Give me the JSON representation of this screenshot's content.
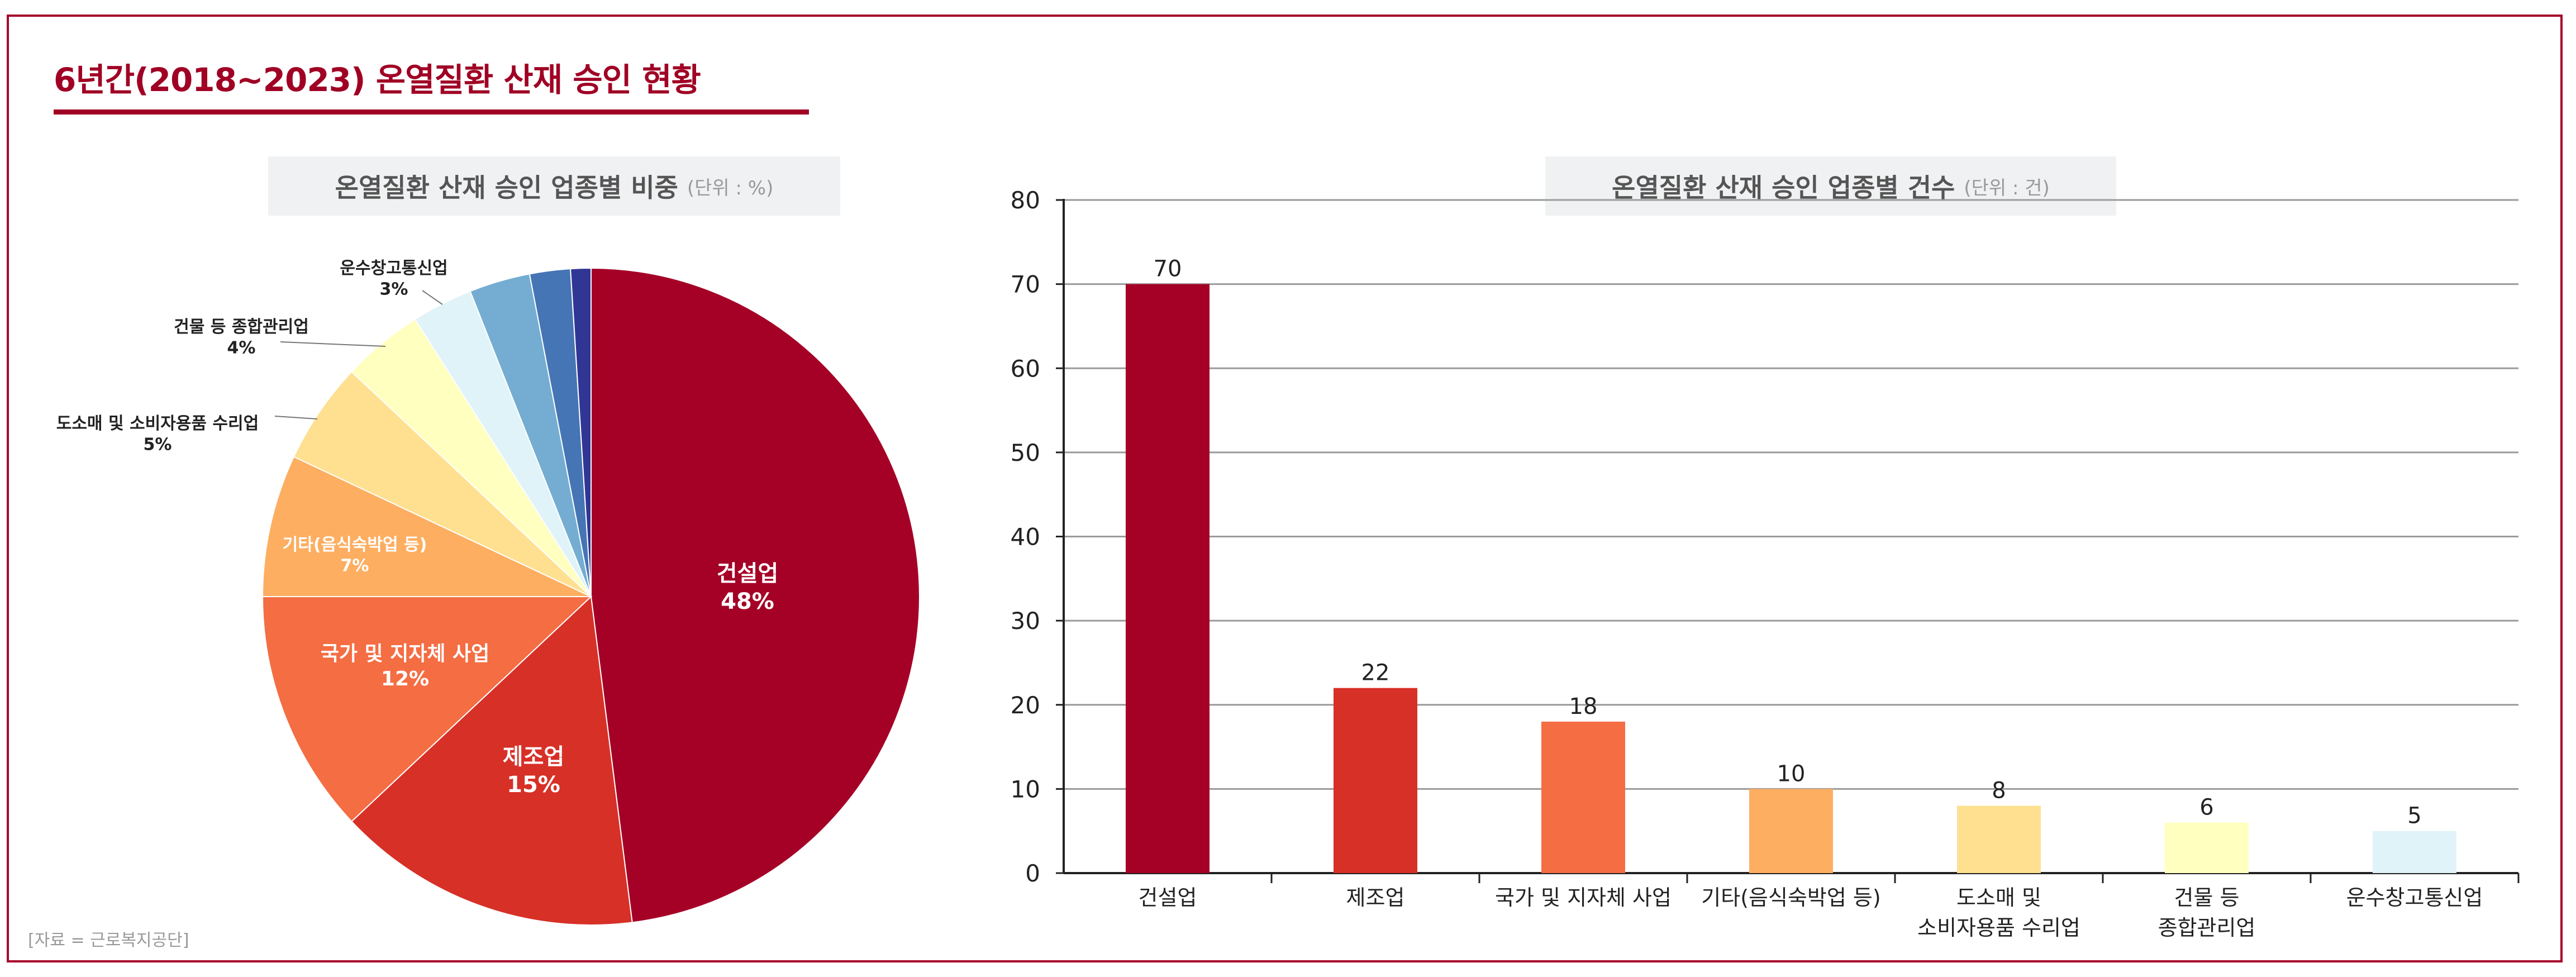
{
  "page": {
    "title": "6년간(2018~2023) 온열질환 산재 승인 현황",
    "source": "[자료 = 근로복지공단]"
  },
  "colors": {
    "brand": "#a00024",
    "frame": "#a8002a",
    "panel_bg": "#f0f1f3"
  },
  "chart_data": [
    {
      "type": "pie",
      "title": "온열질환 산재 승인 업종별 비중",
      "unit": "(단위 : %)",
      "slices": [
        {
          "label": "건설업",
          "value": 48,
          "value_label": "48%",
          "color": "#a50026"
        },
        {
          "label": "제조업",
          "value": 15,
          "value_label": "15%",
          "color": "#d73027"
        },
        {
          "label": "국가 및 지자체 사업",
          "value": 12,
          "value_label": "12%",
          "color": "#f46d43"
        },
        {
          "label": "기타(음식숙박업 등)",
          "value": 7,
          "value_label": "7%",
          "color": "#fdae61"
        },
        {
          "label": "도소매 및 소비자용품 수리업",
          "value": 5,
          "value_label": "5%",
          "color": "#fee090"
        },
        {
          "label": "건물 등 종합관리업",
          "value": 4,
          "value_label": "4%",
          "color": "#ffffbf"
        },
        {
          "label": "운수창고통신업",
          "value": 3,
          "value_label": "3%",
          "color": "#e0f3f8"
        },
        {
          "label": "",
          "value": 3,
          "value_label": "",
          "color": "#74add1"
        },
        {
          "label": "",
          "value": 2,
          "value_label": "",
          "color": "#4575b4"
        },
        {
          "label": "",
          "value": 1,
          "value_label": "",
          "color": "#313695"
        }
      ]
    },
    {
      "type": "bar",
      "title": "온열질환 산재 승인 업종별 건수",
      "unit": "(단위 : 건)",
      "categories": [
        [
          "건설업"
        ],
        [
          "제조업"
        ],
        [
          "국가 및 지자체 사업"
        ],
        [
          "기타(음식숙박업 등)"
        ],
        [
          "도소매 및",
          "소비자용품 수리업"
        ],
        [
          "건물 등",
          "종합관리업"
        ],
        [
          "운수창고통신업"
        ]
      ],
      "values": [
        70,
        22,
        18,
        10,
        8,
        6,
        5
      ],
      "colors": [
        "#a50026",
        "#d73027",
        "#f46d43",
        "#fdae61",
        "#fee090",
        "#ffffbf",
        "#e0f3f8"
      ],
      "ylim": [
        0,
        80
      ],
      "yticks": [
        0,
        10,
        20,
        30,
        40,
        50,
        60,
        70,
        80
      ],
      "grid": true
    }
  ]
}
